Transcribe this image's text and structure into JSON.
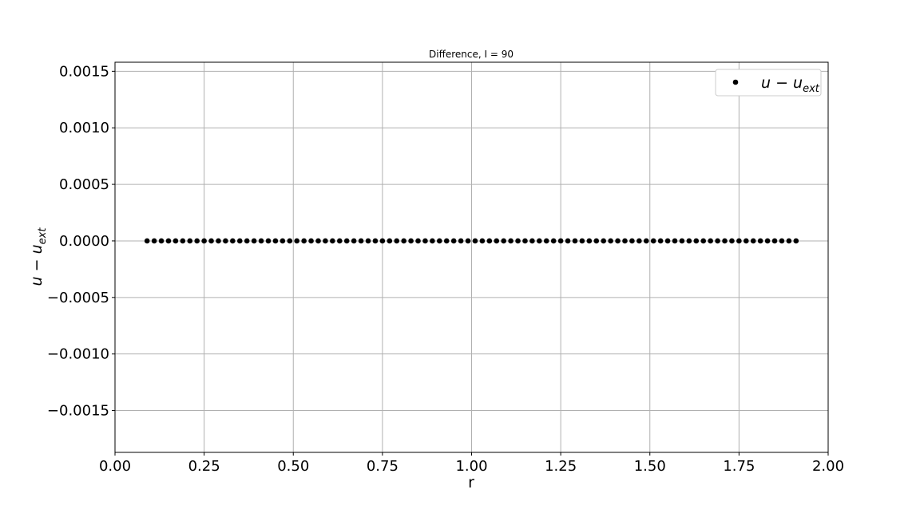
{
  "chart_data": {
    "type": "scatter",
    "title": "Difference, I = 90",
    "xlabel": "r",
    "ylabel": {
      "base": "u − u",
      "sub": "ext"
    },
    "xlim": [
      0.0,
      2.0
    ],
    "ylim": [
      -0.00187,
      0.00158
    ],
    "xticks": [
      0.0,
      0.25,
      0.5,
      0.75,
      1.0,
      1.25,
      1.5,
      1.75,
      2.0
    ],
    "xtick_labels": [
      "0.00",
      "0.25",
      "0.50",
      "0.75",
      "1.00",
      "1.25",
      "1.50",
      "1.75",
      "2.00"
    ],
    "yticks": [
      -0.0015,
      -0.001,
      -0.0005,
      0.0,
      0.0005,
      0.001,
      0.0015
    ],
    "ytick_labels": [
      "−0.0015",
      "−0.0010",
      "−0.0005",
      "0.0000",
      "0.0005",
      "0.0010",
      "0.0015"
    ],
    "grid": true,
    "legend_position": "top-right",
    "series": [
      {
        "name": {
          "base": "u − u",
          "sub": "ext"
        },
        "color": "#000000",
        "marker": "circle",
        "x_start": 0.09,
        "x_step": 0.02,
        "count": 92,
        "y_constant": 0.0
      }
    ]
  }
}
